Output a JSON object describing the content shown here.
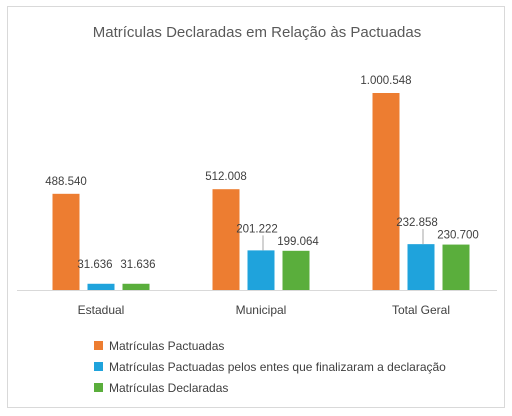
{
  "chart_data": {
    "type": "bar",
    "title": "Matrículas Declaradas em Relação às Pactuadas",
    "categories": [
      "Estadual",
      "Municipal",
      "Total Geral"
    ],
    "series": [
      {
        "name": "Matrículas Pactuadas",
        "color": "#ED7D31",
        "values": [
          488540,
          512008,
          1000548
        ],
        "labels": [
          "488.540",
          "512.008",
          "1.000.548"
        ]
      },
      {
        "name": "Matrículas Pactuadas pelos entes que finalizaram a declaração",
        "color": "#1FA3DC",
        "values": [
          31636,
          201222,
          232858
        ],
        "labels": [
          "31.636",
          "201.222",
          "232.858"
        ]
      },
      {
        "name": "Matrículas Declaradas",
        "color": "#5AAE3C",
        "values": [
          31636,
          199064,
          230700
        ],
        "labels": [
          "31.636",
          "199.064",
          "230.700"
        ]
      }
    ],
    "ylim": [
      0,
      1000548
    ],
    "grid": false,
    "legend_position": "bottom-left"
  }
}
